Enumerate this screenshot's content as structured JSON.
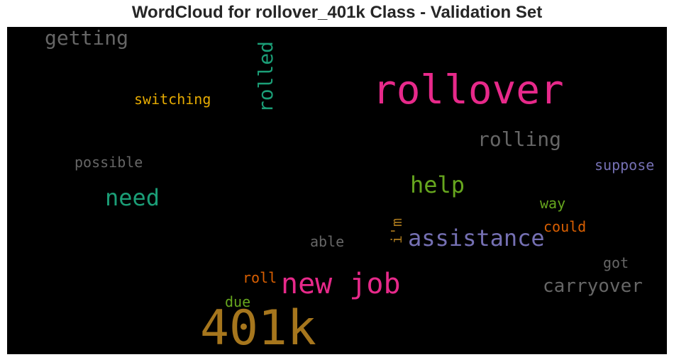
{
  "title": "WordCloud for rollover_401k Class - Validation Set",
  "chart_data": {
    "type": "wordcloud",
    "background": "#000000",
    "words": [
      {
        "text": "rollover",
        "color": "#e7298a",
        "weight": 1.0
      },
      {
        "text": "401k",
        "color": "#a6761d",
        "weight": 0.95
      },
      {
        "text": "new job",
        "color": "#e7298a",
        "weight": 0.55
      },
      {
        "text": "assistance",
        "color": "#7570b3",
        "weight": 0.45
      },
      {
        "text": "help",
        "color": "#66a61e",
        "weight": 0.42
      },
      {
        "text": "need",
        "color": "#1b9e77",
        "weight": 0.42
      },
      {
        "text": "rolled",
        "color": "#1b9e77",
        "weight": 0.4
      },
      {
        "text": "rolling",
        "color": "#666666",
        "weight": 0.38
      },
      {
        "text": "getting",
        "color": "#666666",
        "weight": 0.38
      },
      {
        "text": "carryover",
        "color": "#666666",
        "weight": 0.36
      },
      {
        "text": "switching",
        "color": "#e6ab02",
        "weight": 0.28
      },
      {
        "text": "possible",
        "color": "#666666",
        "weight": 0.26
      },
      {
        "text": "suppose",
        "color": "#7570b3",
        "weight": 0.26
      },
      {
        "text": "way",
        "color": "#66a61e",
        "weight": 0.25
      },
      {
        "text": "could",
        "color": "#d95f02",
        "weight": 0.25
      },
      {
        "text": "able",
        "color": "#666666",
        "weight": 0.25
      },
      {
        "text": "i'm",
        "color": "#a6761d",
        "weight": 0.25
      },
      {
        "text": "got",
        "color": "#666666",
        "weight": 0.25
      },
      {
        "text": "roll",
        "color": "#d95f02",
        "weight": 0.25
      },
      {
        "text": "due",
        "color": "#66a61e",
        "weight": 0.25
      }
    ]
  }
}
